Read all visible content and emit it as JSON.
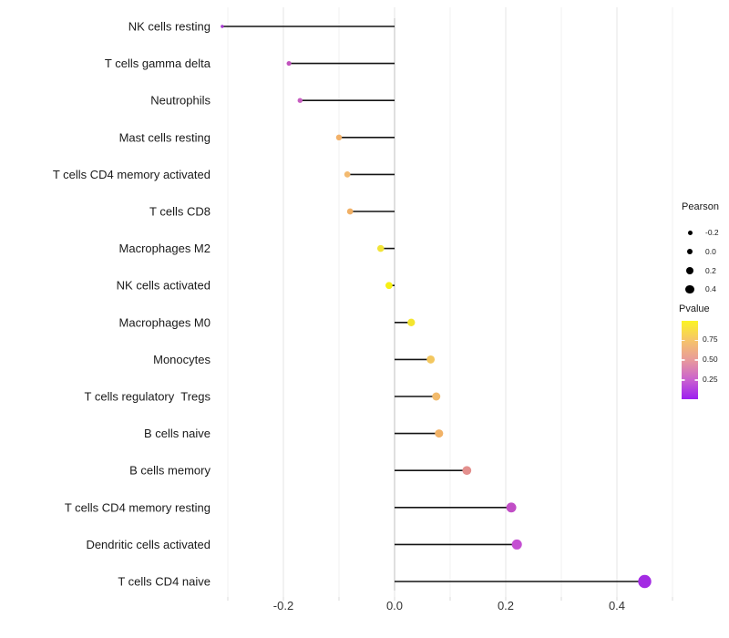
{
  "figure": {
    "background": "#ffffff"
  },
  "chart_data": {
    "type": "lollipop",
    "orientation": "horizontal",
    "title": "",
    "xlabel": "",
    "ylabel": "",
    "xlim": [
      -0.33,
      0.5
    ],
    "grid": "vertical, very light gray",
    "zero_line": true,
    "size_encoding": "Pearson correlation (dot size)",
    "color_encoding": "Pvalue (dot color, yellow=high to purple=low)",
    "x_major_ticks": {
      "values": [
        -0.2,
        0.0,
        0.2,
        0.4
      ],
      "labels": [
        "-0.2",
        "0.0",
        "0.2",
        "0.4"
      ]
    },
    "x_minor_ticks": [
      -0.3,
      -0.1,
      0.1,
      0.3,
      0.5
    ],
    "categories": [
      "NK cells resting",
      "T cells gamma delta",
      "Neutrophils",
      "Mast cells resting",
      "T cells CD4 memory activated",
      "T cells CD8",
      "Macrophages M2",
      "NK cells activated",
      "Macrophages M0",
      "Monocytes",
      "T cells regulatory  Tregs",
      "B cells naive",
      "B cells memory",
      "T cells CD4 memory resting",
      "Dendritic cells activated",
      "T cells CD4 naive"
    ],
    "points": [
      {
        "label": "NK cells resting",
        "pearson": -0.31,
        "pvalue_approx": 0.15,
        "color": "#a636d0"
      },
      {
        "label": "T cells gamma delta",
        "pearson": -0.19,
        "pvalue_approx": 0.35,
        "color": "#c153bd"
      },
      {
        "label": "Neutrophils",
        "pearson": -0.17,
        "pvalue_approx": 0.35,
        "color": "#c75ec1"
      },
      {
        "label": "Mast cells resting",
        "pearson": -0.1,
        "pvalue_approx": 0.65,
        "color": "#f2b169"
      },
      {
        "label": "T cells CD4 memory activated",
        "pearson": -0.085,
        "pvalue_approx": 0.65,
        "color": "#f3ba70"
      },
      {
        "label": "T cells CD8",
        "pearson": -0.08,
        "pvalue_approx": 0.6,
        "color": "#f1b065"
      },
      {
        "label": "Macrophages M2",
        "pearson": -0.025,
        "pvalue_approx": 0.85,
        "color": "#f2e438"
      },
      {
        "label": "NK cells activated",
        "pearson": -0.01,
        "pvalue_approx": 0.95,
        "color": "#f7f014"
      },
      {
        "label": "Macrophages M0",
        "pearson": 0.03,
        "pvalue_approx": 0.9,
        "color": "#f4e52e"
      },
      {
        "label": "Monocytes",
        "pearson": 0.065,
        "pvalue_approx": 0.75,
        "color": "#f3c75f"
      },
      {
        "label": "T cells regulatory  Tregs",
        "pearson": 0.075,
        "pvalue_approx": 0.65,
        "color": "#f2ba6b"
      },
      {
        "label": "B cells naive",
        "pearson": 0.08,
        "pvalue_approx": 0.6,
        "color": "#f1b267"
      },
      {
        "label": "B cells memory",
        "pearson": 0.13,
        "pvalue_approx": 0.5,
        "color": "#e38f8d"
      },
      {
        "label": "T cells CD4 memory resting",
        "pearson": 0.21,
        "pvalue_approx": 0.3,
        "color": "#c14ec6"
      },
      {
        "label": "Dendritic cells activated",
        "pearson": 0.22,
        "pvalue_approx": 0.3,
        "color": "#c44fd2"
      },
      {
        "label": "T cells CD4 naive",
        "pearson": 0.45,
        "pvalue_approx": 0.05,
        "color": "#a32be3"
      }
    ],
    "stem_color": "#141414",
    "legend_position": "right"
  },
  "legends": {
    "pearson": {
      "title": "Pearson",
      "dot_color": "#000000",
      "entries": [
        {
          "label": "-0.2"
        },
        {
          "label": "0.0"
        },
        {
          "label": "0.2"
        },
        {
          "label": "0.4"
        }
      ]
    },
    "pvalue": {
      "title": "Pvalue",
      "tick_labels": [
        "0.75",
        "0.50",
        "0.25"
      ],
      "gradient_top_to_bottom": [
        "#fbf425",
        "#f6c46a",
        "#e89a9b",
        "#ca62cf",
        "#9c1ff0"
      ]
    }
  }
}
